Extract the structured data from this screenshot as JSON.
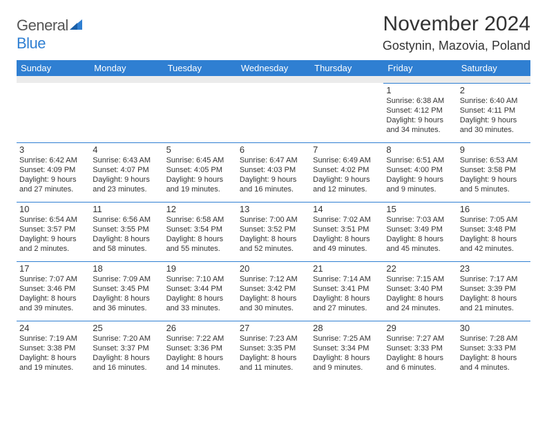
{
  "brand": {
    "word1": "General",
    "word2": "Blue"
  },
  "title": "November 2024",
  "location": "Gostynin, Mazovia, Poland",
  "colors": {
    "header_bg": "#2f7fd2",
    "header_text": "#ffffff",
    "rule": "#2f7fd2",
    "spacer": "#ebebeb",
    "text": "#333333",
    "page_bg": "#ffffff"
  },
  "layout": {
    "cols": 7,
    "rows": 5,
    "first_day_col": 5
  },
  "weekday_labels": [
    "Sunday",
    "Monday",
    "Tuesday",
    "Wednesday",
    "Thursday",
    "Friday",
    "Saturday"
  ],
  "days": [
    {
      "n": 1,
      "sunrise": "6:38 AM",
      "sunset": "4:12 PM",
      "daylight": "9 hours and 34 minutes."
    },
    {
      "n": 2,
      "sunrise": "6:40 AM",
      "sunset": "4:11 PM",
      "daylight": "9 hours and 30 minutes."
    },
    {
      "n": 3,
      "sunrise": "6:42 AM",
      "sunset": "4:09 PM",
      "daylight": "9 hours and 27 minutes."
    },
    {
      "n": 4,
      "sunrise": "6:43 AM",
      "sunset": "4:07 PM",
      "daylight": "9 hours and 23 minutes."
    },
    {
      "n": 5,
      "sunrise": "6:45 AM",
      "sunset": "4:05 PM",
      "daylight": "9 hours and 19 minutes."
    },
    {
      "n": 6,
      "sunrise": "6:47 AM",
      "sunset": "4:03 PM",
      "daylight": "9 hours and 16 minutes."
    },
    {
      "n": 7,
      "sunrise": "6:49 AM",
      "sunset": "4:02 PM",
      "daylight": "9 hours and 12 minutes."
    },
    {
      "n": 8,
      "sunrise": "6:51 AM",
      "sunset": "4:00 PM",
      "daylight": "9 hours and 9 minutes."
    },
    {
      "n": 9,
      "sunrise": "6:53 AM",
      "sunset": "3:58 PM",
      "daylight": "9 hours and 5 minutes."
    },
    {
      "n": 10,
      "sunrise": "6:54 AM",
      "sunset": "3:57 PM",
      "daylight": "9 hours and 2 minutes."
    },
    {
      "n": 11,
      "sunrise": "6:56 AM",
      "sunset": "3:55 PM",
      "daylight": "8 hours and 58 minutes."
    },
    {
      "n": 12,
      "sunrise": "6:58 AM",
      "sunset": "3:54 PM",
      "daylight": "8 hours and 55 minutes."
    },
    {
      "n": 13,
      "sunrise": "7:00 AM",
      "sunset": "3:52 PM",
      "daylight": "8 hours and 52 minutes."
    },
    {
      "n": 14,
      "sunrise": "7:02 AM",
      "sunset": "3:51 PM",
      "daylight": "8 hours and 49 minutes."
    },
    {
      "n": 15,
      "sunrise": "7:03 AM",
      "sunset": "3:49 PM",
      "daylight": "8 hours and 45 minutes."
    },
    {
      "n": 16,
      "sunrise": "7:05 AM",
      "sunset": "3:48 PM",
      "daylight": "8 hours and 42 minutes."
    },
    {
      "n": 17,
      "sunrise": "7:07 AM",
      "sunset": "3:46 PM",
      "daylight": "8 hours and 39 minutes."
    },
    {
      "n": 18,
      "sunrise": "7:09 AM",
      "sunset": "3:45 PM",
      "daylight": "8 hours and 36 minutes."
    },
    {
      "n": 19,
      "sunrise": "7:10 AM",
      "sunset": "3:44 PM",
      "daylight": "8 hours and 33 minutes."
    },
    {
      "n": 20,
      "sunrise": "7:12 AM",
      "sunset": "3:42 PM",
      "daylight": "8 hours and 30 minutes."
    },
    {
      "n": 21,
      "sunrise": "7:14 AM",
      "sunset": "3:41 PM",
      "daylight": "8 hours and 27 minutes."
    },
    {
      "n": 22,
      "sunrise": "7:15 AM",
      "sunset": "3:40 PM",
      "daylight": "8 hours and 24 minutes."
    },
    {
      "n": 23,
      "sunrise": "7:17 AM",
      "sunset": "3:39 PM",
      "daylight": "8 hours and 21 minutes."
    },
    {
      "n": 24,
      "sunrise": "7:19 AM",
      "sunset": "3:38 PM",
      "daylight": "8 hours and 19 minutes."
    },
    {
      "n": 25,
      "sunrise": "7:20 AM",
      "sunset": "3:37 PM",
      "daylight": "8 hours and 16 minutes."
    },
    {
      "n": 26,
      "sunrise": "7:22 AM",
      "sunset": "3:36 PM",
      "daylight": "8 hours and 14 minutes."
    },
    {
      "n": 27,
      "sunrise": "7:23 AM",
      "sunset": "3:35 PM",
      "daylight": "8 hours and 11 minutes."
    },
    {
      "n": 28,
      "sunrise": "7:25 AM",
      "sunset": "3:34 PM",
      "daylight": "8 hours and 9 minutes."
    },
    {
      "n": 29,
      "sunrise": "7:27 AM",
      "sunset": "3:33 PM",
      "daylight": "8 hours and 6 minutes."
    },
    {
      "n": 30,
      "sunrise": "7:28 AM",
      "sunset": "3:33 PM",
      "daylight": "8 hours and 4 minutes."
    }
  ],
  "labels": {
    "sunrise": "Sunrise:",
    "sunset": "Sunset:",
    "daylight": "Daylight:"
  }
}
